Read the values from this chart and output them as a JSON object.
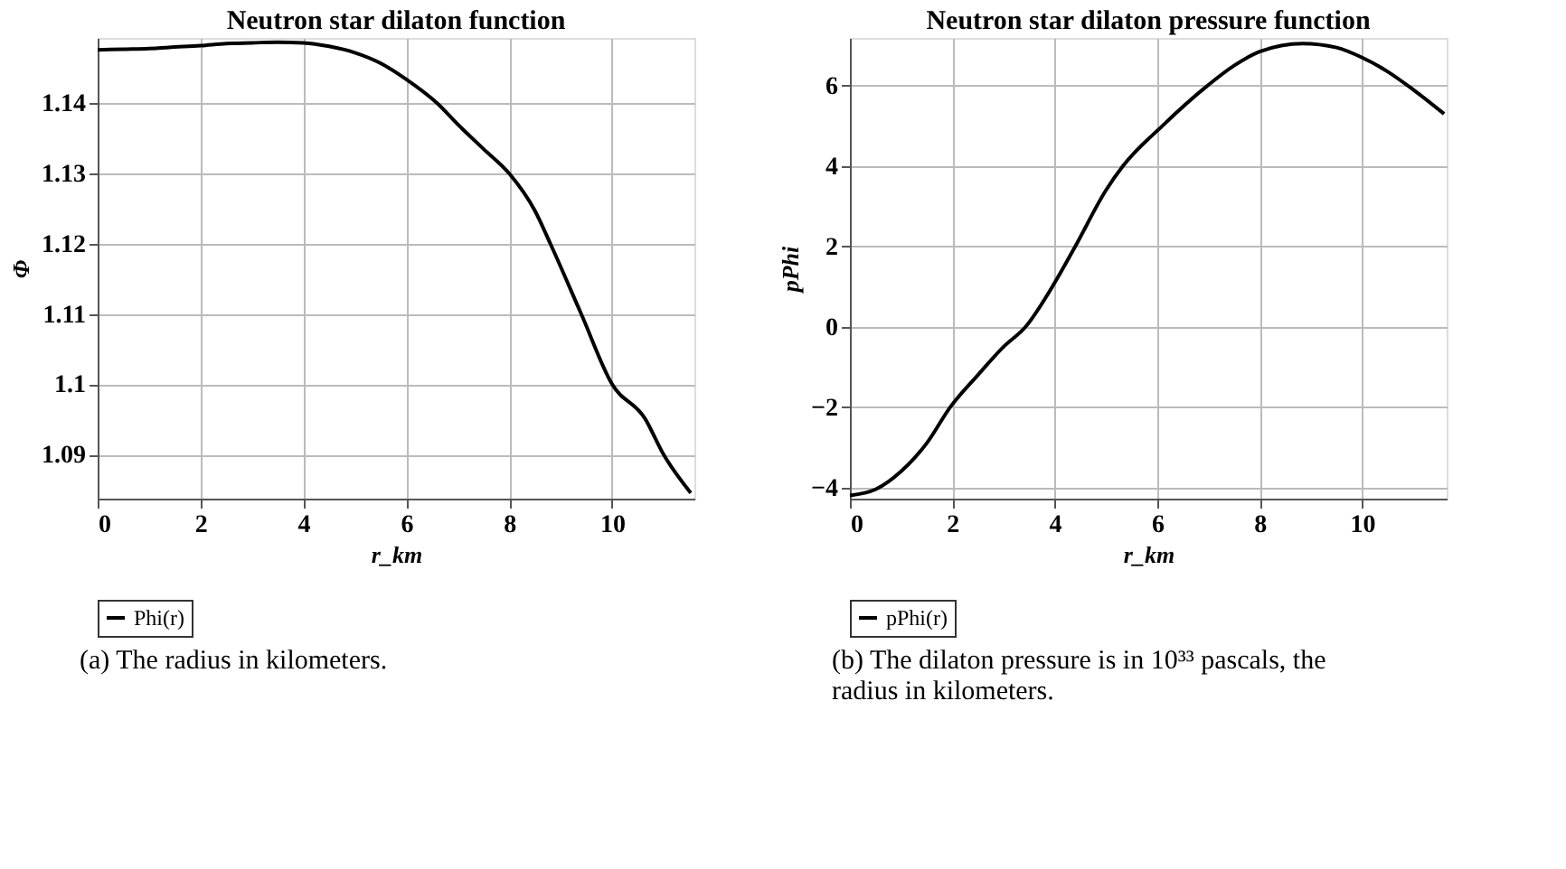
{
  "chart_data": [
    {
      "type": "line",
      "title": "Neutron star dilaton function",
      "xlabel": "r_km",
      "ylabel": "Φ",
      "x": [
        0,
        0.5,
        1,
        1.5,
        2,
        2.5,
        3,
        3.5,
        4,
        4.5,
        5,
        5.5,
        6,
        6.6,
        7,
        7.5,
        8,
        8.5,
        8.8,
        9.4,
        10,
        10.64,
        11,
        11.53
      ],
      "series": [
        {
          "name": "Phi(r)",
          "color": "#000000",
          "values": [
            1.1476,
            1.1477,
            1.1478,
            1.148,
            1.1482,
            1.1485,
            1.1486,
            1.1487,
            1.1486,
            1.1481,
            1.1472,
            1.1457,
            1.1434,
            1.14,
            1.137,
            1.1335,
            1.13,
            1.1247,
            1.12,
            1.11,
            1.1,
            1.0951,
            1.09,
            1.0845
          ]
        }
      ],
      "xlim": [
        0,
        11.6
      ],
      "ylim": [
        1.0837,
        1.1493
      ],
      "xticks": [
        0,
        2,
        4,
        6,
        8,
        10
      ],
      "yticks": [
        1.09,
        1.1,
        1.11,
        1.12,
        1.13,
        1.14
      ],
      "grid": true,
      "legend": "bottom",
      "line_style": "solid",
      "annotations": [
        "(a) The radius in kilometers."
      ]
    },
    {
      "type": "line",
      "title": "Neutron star dilaton pressure function",
      "xlabel": "r_km",
      "ylabel": "pPhi",
      "x": [
        0,
        0.5,
        1,
        1.5,
        1.96,
        2.5,
        3,
        3.43,
        4,
        4.4,
        5,
        5.33,
        6.1,
        6.98,
        7.5,
        8,
        8.84,
        9.5,
        10,
        10.5,
        11,
        11.6
      ],
      "series": [
        {
          "name": "pPhi(r)",
          "color": "#000000",
          "values": [
            -4.2,
            -4.05,
            -3.6,
            -2.9,
            -2.0,
            -1.2,
            -0.5,
            0.0,
            1.1,
            2.0,
            3.4,
            4.0,
            5.0,
            6.0,
            6.5,
            6.85,
            7.05,
            6.95,
            6.7,
            6.35,
            5.9,
            5.3
          ]
        }
      ],
      "xlim": [
        0,
        11.65
      ],
      "ylim": [
        -4.28,
        7.19
      ],
      "xticks": [
        0,
        2,
        4,
        6,
        8,
        10
      ],
      "yticks": [
        -4,
        -2,
        0,
        2,
        4,
        6
      ],
      "grid": true,
      "legend": "bottom",
      "line_style": "solid",
      "annotations": [
        "(b) The dilaton pressure is in 10³³ pascals, the radius in kilometers."
      ]
    }
  ]
}
